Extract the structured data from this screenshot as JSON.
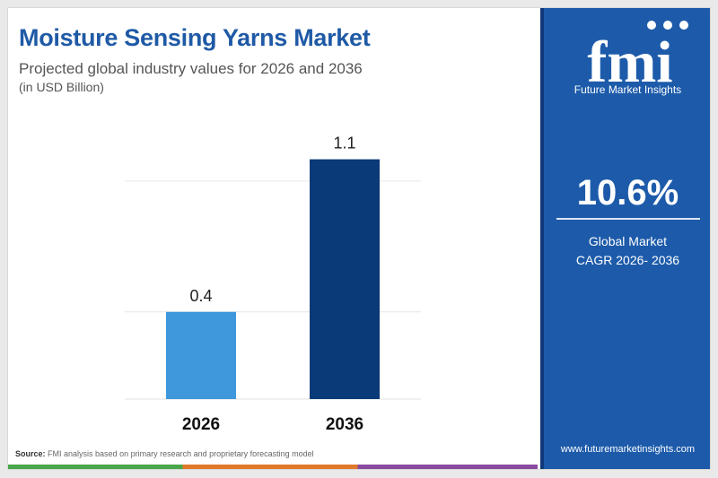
{
  "header": {
    "title": "Moisture Sensing Yarns Market",
    "subtitle": "Projected global industry values for 2026 and 2036",
    "unit": "(in USD Billion)"
  },
  "chart_data": {
    "type": "bar",
    "categories": [
      "2026",
      "2036"
    ],
    "values": [
      0.4,
      1.1
    ],
    "value_labels": [
      "0.4",
      "1.1"
    ],
    "title": "Moisture Sensing Yarns Market",
    "xlabel": "",
    "ylabel": "",
    "ylim": [
      0,
      1.3
    ],
    "grid": true,
    "colors": [
      "#3f97dc",
      "#0b3a78"
    ]
  },
  "footer": {
    "source_label": "Source:",
    "source_text": "FMI analysis based on primary research and proprietary forecasting model"
  },
  "sidebar": {
    "logo_text": "fmi",
    "logo_caption": "Future Market Insights",
    "cagr_value": "10.6%",
    "cagr_line1": "Global Market",
    "cagr_line2": "CAGR 2026- 2036",
    "website": "www.futuremarketinsights.com",
    "bg_color": "#1d5baa"
  }
}
